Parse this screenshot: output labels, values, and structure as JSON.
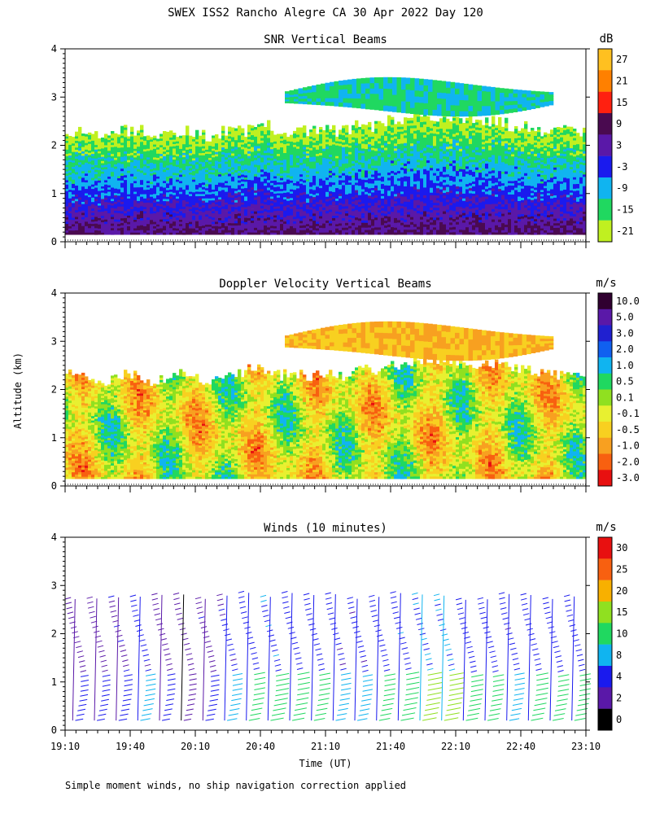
{
  "figure": {
    "title": "SWEX ISS2 Rancho Alegre CA  30 Apr 2022 Day 120",
    "footnote": "Simple moment winds, no ship navigation correction applied",
    "xlabel": "Time (UT)",
    "ylabel": "Altitude (km)"
  },
  "chart_data": [
    {
      "type": "heatmap",
      "title": "SNR Vertical Beams",
      "units": "dB",
      "x_range": [
        "19:10",
        "23:10"
      ],
      "x_ticks": [
        "19:10",
        "19:40",
        "20:10",
        "20:40",
        "21:10",
        "21:40",
        "22:10",
        "22:40",
        "23:10"
      ],
      "y_range": [
        0,
        4
      ],
      "y_ticks": [
        "0",
        "1",
        "2",
        "3",
        "4"
      ],
      "colorbar": {
        "labels": [
          "27",
          "21",
          "15",
          "9",
          "3",
          "-3",
          "-9",
          "-15",
          "-21"
        ],
        "colors": [
          "#ffc020",
          "#ff8000",
          "#ff2010",
          "#4a0a50",
          "#5a18a8",
          "#1a1aee",
          "#10b4f0",
          "#20d860",
          "#c0f020"
        ]
      },
      "cloud_top_km": [
        2.3,
        2.2,
        2.3,
        2.2,
        2.3,
        2.2,
        2.3,
        2.4,
        2.3,
        2.3,
        2.3,
        2.4,
        2.5,
        2.6,
        2.6,
        2.5,
        2.5,
        2.4,
        2.3,
        2.3
      ]
    },
    {
      "type": "heatmap",
      "title": "Doppler Velocity Vertical Beams",
      "units": "m/s",
      "x_range": [
        "19:10",
        "23:10"
      ],
      "x_ticks": [
        "19:10",
        "19:40",
        "20:10",
        "20:40",
        "21:10",
        "21:40",
        "22:10",
        "22:40",
        "23:10"
      ],
      "y_range": [
        0,
        4
      ],
      "y_ticks": [
        "0",
        "1",
        "2",
        "3",
        "4"
      ],
      "colorbar": {
        "labels": [
          "10.0",
          "5.0",
          "3.0",
          "2.0",
          "1.0",
          "0.5",
          "0.1",
          "-0.1",
          "-0.5",
          "-1.0",
          "-2.0",
          "-3.0"
        ],
        "colors": [
          "#300030",
          "#5a18a8",
          "#2020d0",
          "#1060f0",
          "#10b4f0",
          "#20d860",
          "#90e020",
          "#e8f030",
          "#f8d020",
          "#f8a020",
          "#f86010",
          "#e81010"
        ]
      }
    },
    {
      "type": "wind-barbs",
      "title": "Winds (10 minutes)",
      "units": "m/s",
      "x_range": [
        "19:10",
        "23:10"
      ],
      "x_ticks": [
        "19:10",
        "19:40",
        "20:10",
        "20:40",
        "21:10",
        "21:40",
        "22:10",
        "22:40",
        "23:10"
      ],
      "y_range": [
        0,
        4
      ],
      "y_ticks": [
        "0",
        "1",
        "2",
        "3",
        "4"
      ],
      "colorbar": {
        "labels": [
          "30",
          "25",
          "20",
          "15",
          "10",
          "8",
          "4",
          "2",
          "0"
        ],
        "colors": [
          "#e81010",
          "#f86010",
          "#f8b000",
          "#90e020",
          "#20d860",
          "#10b4f0",
          "#1a1aee",
          "#5a18a8",
          "#000000"
        ]
      },
      "profile_times": [
        "19:15",
        "19:25",
        "19:35",
        "19:45",
        "19:55",
        "20:05",
        "20:15",
        "20:25",
        "20:35",
        "20:45",
        "20:55",
        "21:05",
        "21:15",
        "21:25",
        "21:35",
        "21:45",
        "21:55",
        "22:05",
        "22:15",
        "22:25",
        "22:35",
        "22:45",
        "22:55",
        "23:05"
      ],
      "low_level_speed_ms": [
        4,
        4,
        5,
        8,
        4,
        3,
        5,
        8,
        10,
        14,
        12,
        10,
        8,
        8,
        10,
        14,
        16,
        16,
        12,
        10,
        8,
        12,
        10,
        10
      ]
    }
  ]
}
